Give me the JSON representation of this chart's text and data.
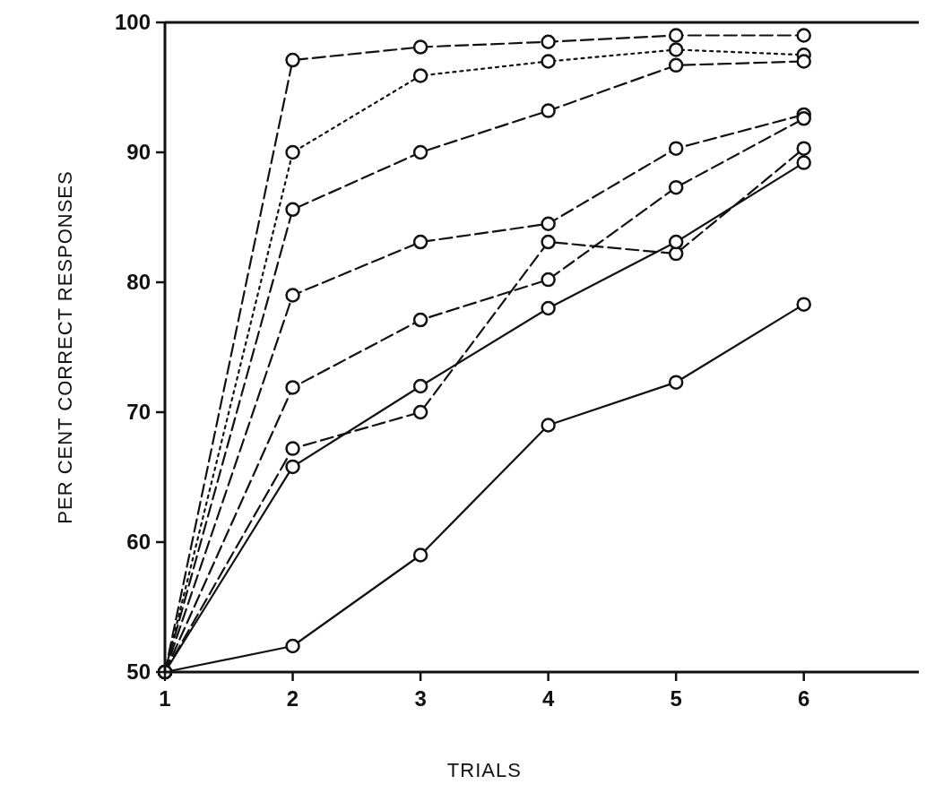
{
  "chart_data": {
    "type": "line",
    "xlabel": "TRIALS",
    "ylabel": "PER CENT CORRECT RESPONSES",
    "x": [
      1,
      2,
      3,
      4,
      5,
      6
    ],
    "xlim": [
      1,
      6.9
    ],
    "xticks": [
      1,
      2,
      3,
      4,
      5,
      6
    ],
    "ylim": [
      50,
      100
    ],
    "yticks": [
      50,
      60,
      70,
      80,
      90,
      100
    ],
    "grid": false,
    "marker": "circle",
    "series": [
      {
        "color": "#111111",
        "line_style": "dashed",
        "values": [
          50,
          97.1,
          98.1,
          98.5,
          99,
          99
        ]
      },
      {
        "color": "#111111",
        "line_style": "dotted",
        "values": [
          50,
          90,
          95.9,
          97,
          97.9,
          97.5
        ]
      },
      {
        "color": "#111111",
        "line_style": "dashed",
        "values": [
          50,
          85.6,
          90,
          93.2,
          96.7,
          97
        ]
      },
      {
        "color": "#111111",
        "line_style": "dashed",
        "values": [
          50,
          79,
          83.1,
          84.5,
          90.3,
          92.9
        ]
      },
      {
        "color": "#111111",
        "line_style": "dashed",
        "values": [
          50,
          71.9,
          77.1,
          80.2,
          87.3,
          92.6
        ]
      },
      {
        "color": "#111111",
        "line_style": "dashed",
        "values": [
          50,
          67.2,
          70,
          83.1,
          82.2,
          90.3
        ]
      },
      {
        "color": "#111111",
        "line_style": "solid",
        "values": [
          50,
          65.8,
          72,
          78,
          83.1,
          89.2
        ]
      },
      {
        "color": "#111111",
        "line_style": "solid",
        "values": [
          50,
          52,
          59,
          69,
          72.3,
          78.3
        ]
      }
    ]
  }
}
